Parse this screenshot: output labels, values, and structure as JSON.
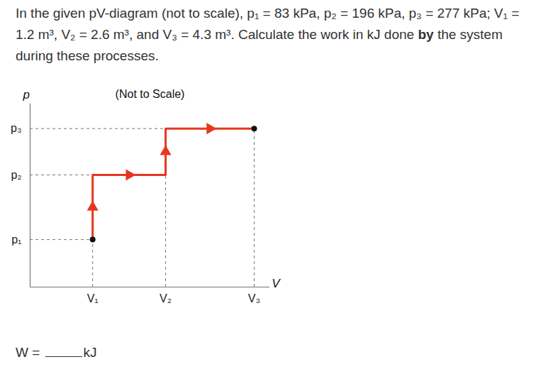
{
  "question": [
    {
      "text": "In the given pV-diagram (not to scale), p₁ = 83 kPa, p₂ = 196 kPa, p₃ = 277 kPa; V₁ = 1.2 m³, V₂ = 2.6 m³, and V₃ = 4.3 m³. Calculate the work in kJ done "
    },
    {
      "text": "by",
      "bold": true
    },
    {
      "text": " the system during these processes."
    }
  ],
  "chart_data": {
    "type": "line",
    "title": "(Not to Scale)",
    "x_label": "V",
    "y_label": "p",
    "x": [
      1.2,
      1.2,
      2.6,
      2.6,
      4.3
    ],
    "values": [
      83,
      196,
      196,
      277,
      277
    ],
    "color": "#e8361e",
    "marker": "arrow",
    "line_style": "solid",
    "grid": true,
    "xlim": [
      0,
      4.6
    ],
    "xticks": [
      {
        "value": 1.2,
        "label": "V₁"
      },
      {
        "value": 2.6,
        "label": "V₂"
      },
      {
        "value": 4.3,
        "label": "V₃"
      }
    ],
    "ylim": [
      0,
      320
    ],
    "yticks": [
      {
        "value": 83,
        "label": "p₁"
      },
      {
        "value": 196,
        "label": "p₂"
      },
      {
        "value": 277,
        "label": "p₃"
      }
    ]
  },
  "answer": {
    "label": "W =",
    "unit": "kJ"
  }
}
